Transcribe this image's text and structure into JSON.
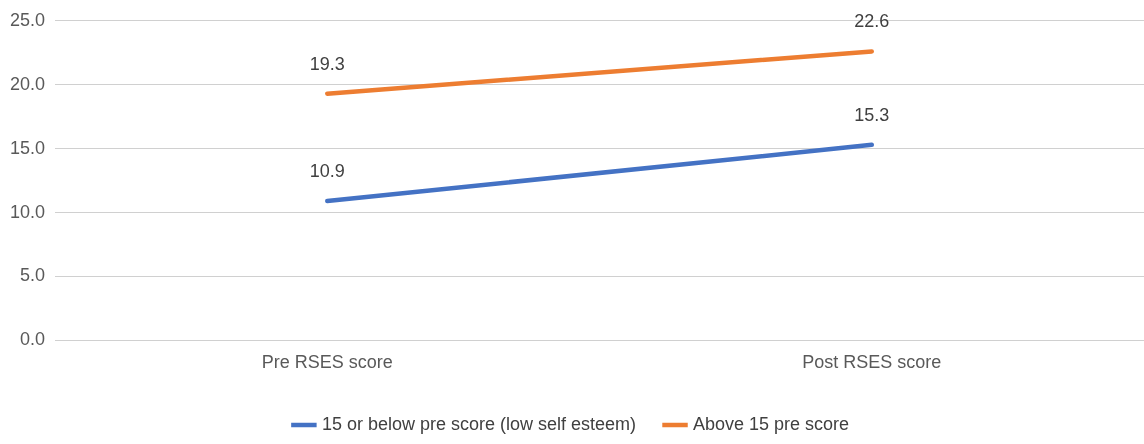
{
  "chart_data": {
    "type": "line",
    "categories": [
      "Pre RSES score",
      "Post RSES score"
    ],
    "series": [
      {
        "name": "15 or below pre score (low self esteem)",
        "color": "#4472c4",
        "values": [
          10.9,
          15.3
        ]
      },
      {
        "name": "Above 15 pre score",
        "color": "#ed7d31",
        "values": [
          19.3,
          22.6
        ]
      }
    ],
    "ylim": [
      0,
      25
    ],
    "yticks": [
      {
        "value": 0,
        "label": "0.0"
      },
      {
        "value": 5,
        "label": "5.0"
      },
      {
        "value": 10,
        "label": "10.0"
      },
      {
        "value": 15,
        "label": "15.0"
      },
      {
        "value": 20,
        "label": "20.0"
      },
      {
        "value": 25,
        "label": "25.0"
      }
    ],
    "grid": "y",
    "legend": "bottom",
    "data_labels": true,
    "marker": "none",
    "line_style": "solid"
  }
}
